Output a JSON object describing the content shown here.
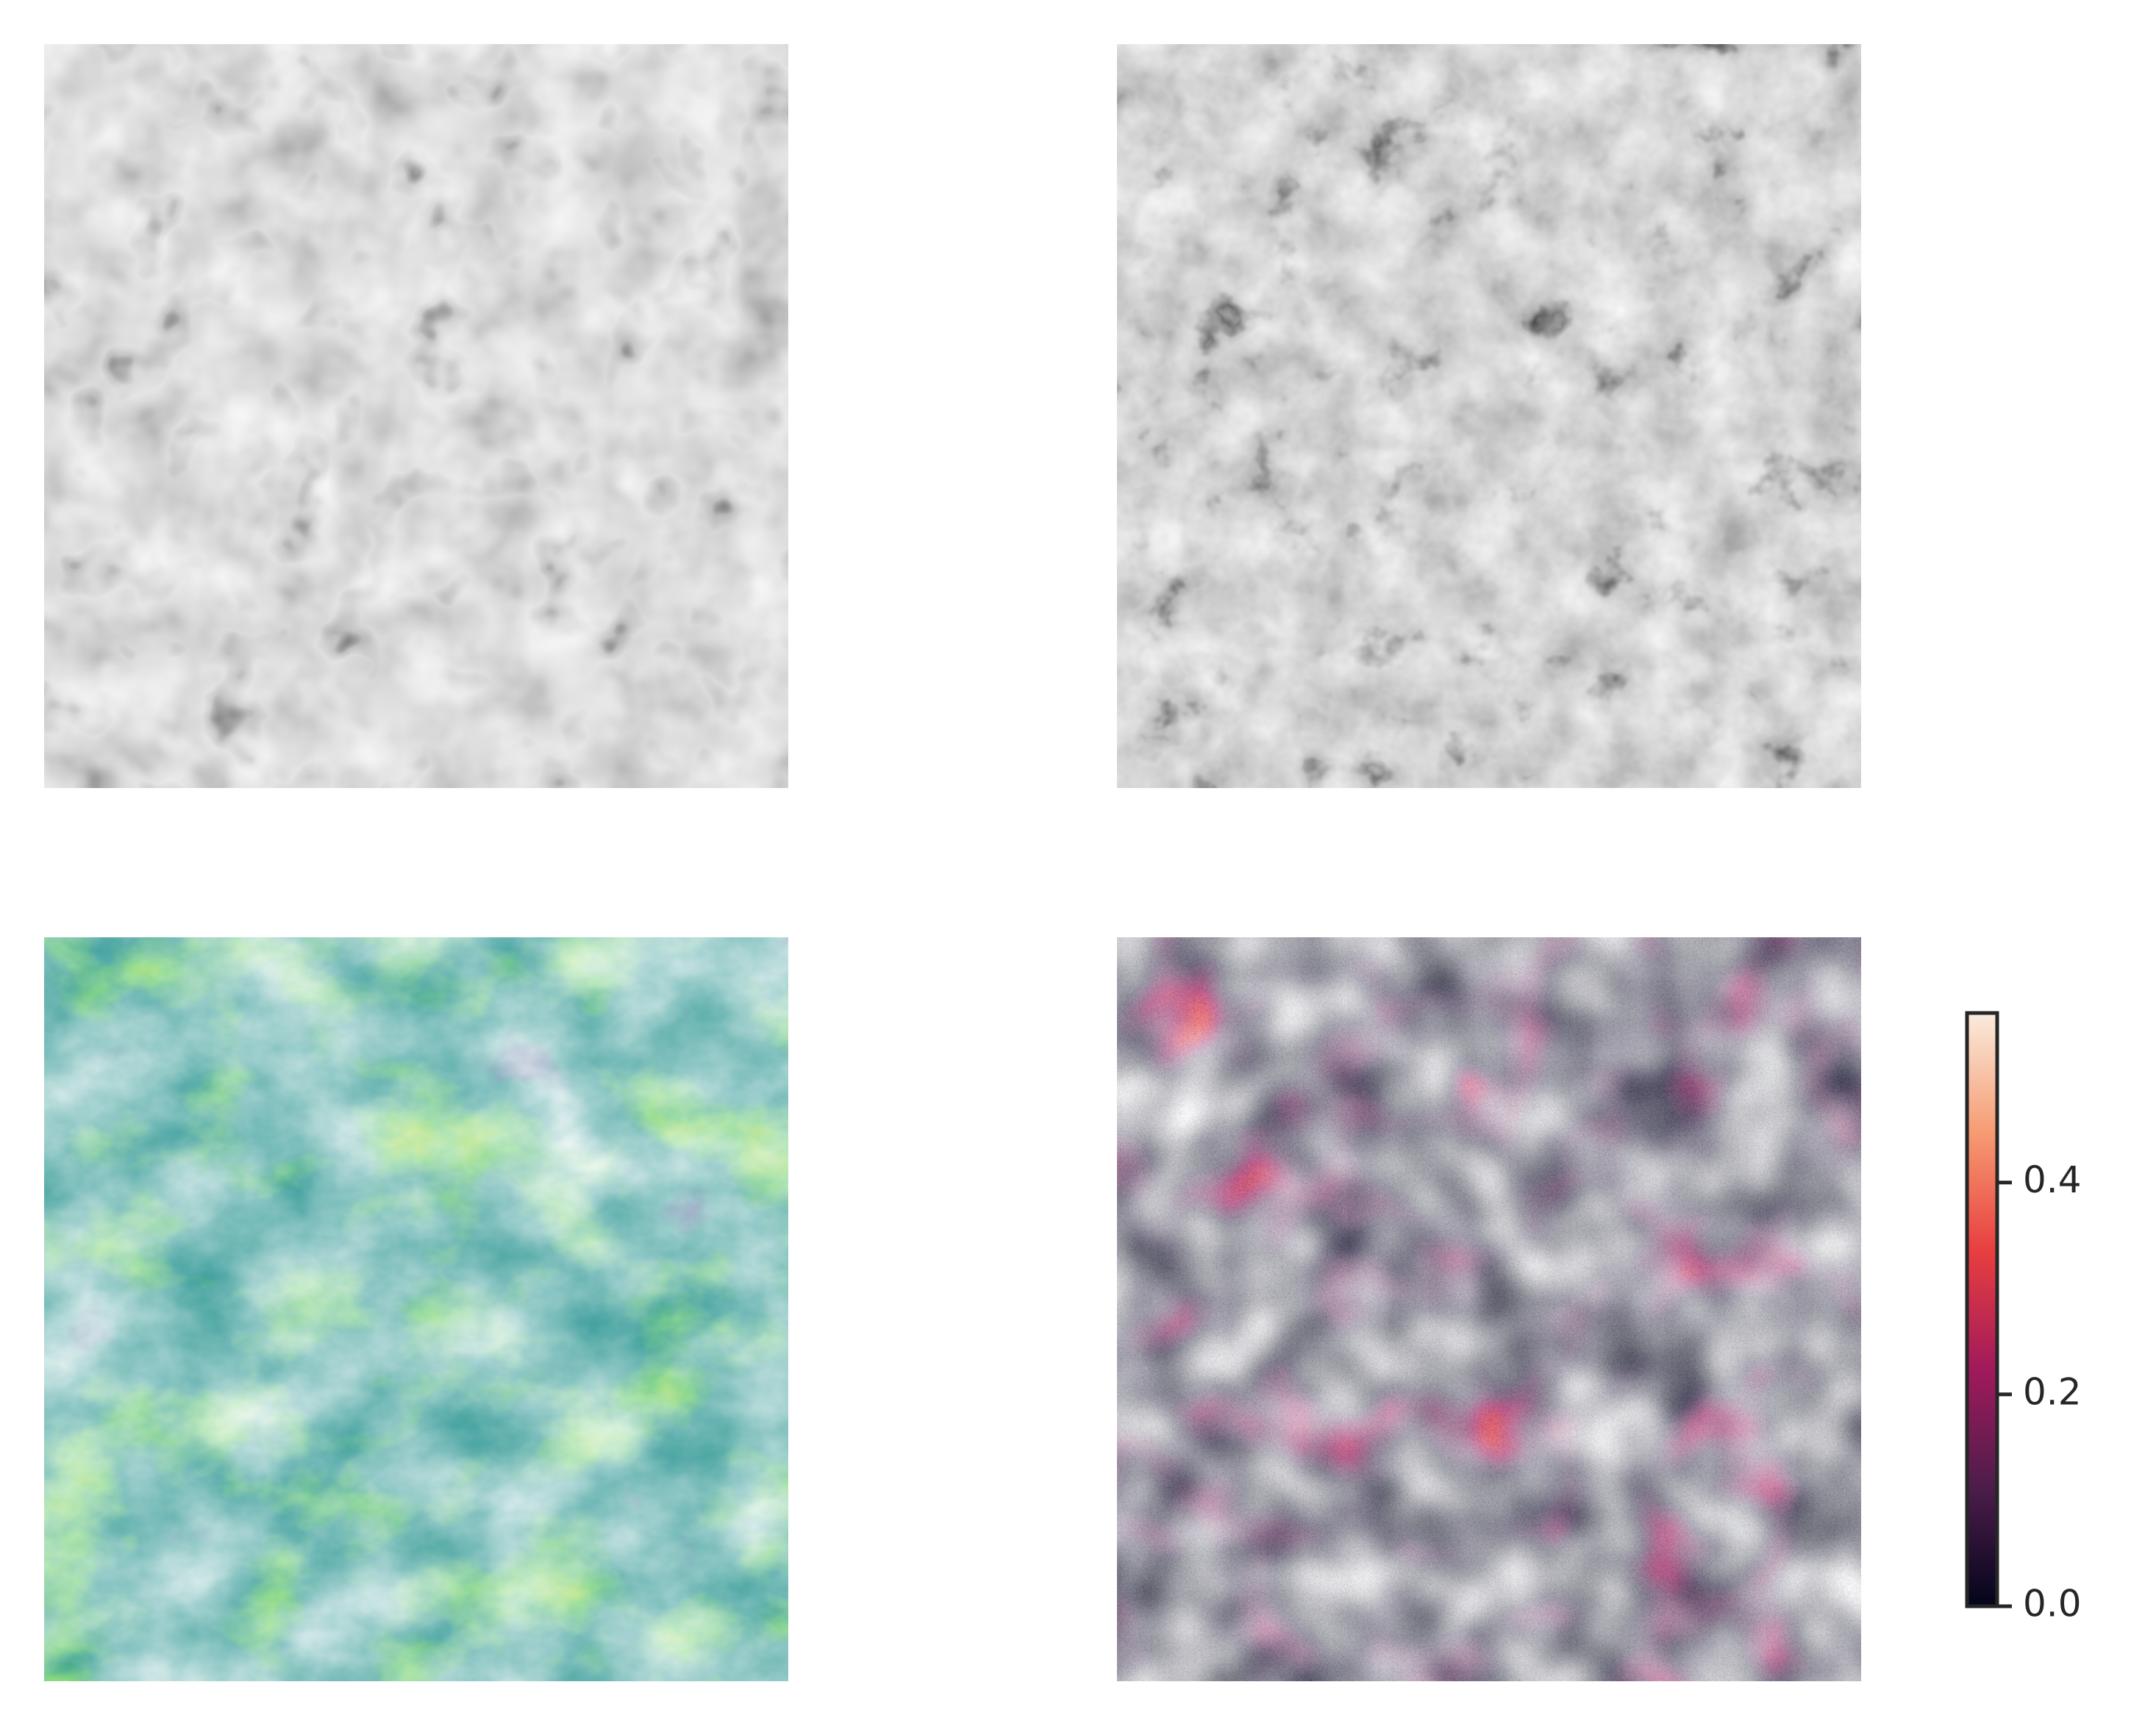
{
  "chart_data": {
    "type": "heatmap",
    "cmap": [
      "#03051a",
      "#4c1d4b",
      "#a11a5b",
      "#e83f3f",
      "#f69c73",
      "#faebdd"
    ],
    "ylim": [
      0,
      0.56
    ],
    "yticks": [
      {
        "value": 0,
        "label": "0.0"
      },
      0.2,
      0.4
    ]
  }
}
